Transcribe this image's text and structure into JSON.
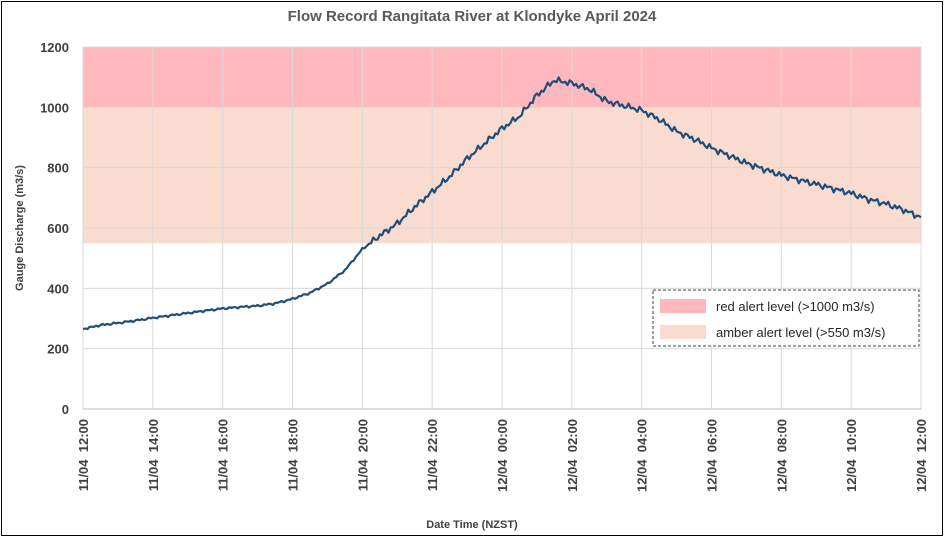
{
  "chart_data": {
    "type": "line",
    "title": "Flow Record Rangitata River at Klondyke April 2024",
    "xlabel": "Date Time (NZST)",
    "ylabel": "Gauge Discharge (m3/s)",
    "ylim": [
      0,
      1200
    ],
    "yticks": [
      0,
      200,
      400,
      600,
      800,
      1000,
      1200
    ],
    "xlim": [
      "2024-04-11 12:00",
      "2024-04-12 12:00"
    ],
    "xticks": [
      {
        "value": "2024-04-11 12:00",
        "label": "11/04  12:00"
      },
      {
        "value": "2024-04-11 14:00",
        "label": "11/04  14:00"
      },
      {
        "value": "2024-04-11 16:00",
        "label": "11/04  16:00"
      },
      {
        "value": "2024-04-11 18:00",
        "label": "11/04  18:00"
      },
      {
        "value": "2024-04-11 20:00",
        "label": "11/04  20:00"
      },
      {
        "value": "2024-04-11 22:00",
        "label": "11/04  22:00"
      },
      {
        "value": "2024-04-12 00:00",
        "label": "12/04  00:00"
      },
      {
        "value": "2024-04-12 02:00",
        "label": "12/04  02:00"
      },
      {
        "value": "2024-04-12 04:00",
        "label": "12/04  04:00"
      },
      {
        "value": "2024-04-12 06:00",
        "label": "12/04  06:00"
      },
      {
        "value": "2024-04-12 08:00",
        "label": "12/04  08:00"
      },
      {
        "value": "2024-04-12 10:00",
        "label": "12/04  10:00"
      },
      {
        "value": "2024-04-12 12:00",
        "label": "12/04  12:00"
      }
    ],
    "grid": true,
    "legend_position": "right",
    "bands": [
      {
        "name": "red alert level (>1000 m3/s)",
        "from": 1000,
        "to": 1200,
        "color": "#ffb9be"
      },
      {
        "name": "amber alert level (>550 m3/s)",
        "from": 550,
        "to": 1000,
        "color": "#f9dccf"
      }
    ],
    "series": [
      {
        "color": "#1f4e79",
        "x": [
          "2024-04-11 12:00",
          "2024-04-11 12:30",
          "2024-04-11 13:00",
          "2024-04-11 13:30",
          "2024-04-11 14:00",
          "2024-04-11 14:30",
          "2024-04-11 15:00",
          "2024-04-11 15:30",
          "2024-04-11 16:00",
          "2024-04-11 16:30",
          "2024-04-11 17:00",
          "2024-04-11 17:30",
          "2024-04-11 18:00",
          "2024-04-11 18:30",
          "2024-04-11 19:00",
          "2024-04-11 19:30",
          "2024-04-11 20:00",
          "2024-04-11 20:30",
          "2024-04-11 21:00",
          "2024-04-11 21:30",
          "2024-04-11 22:00",
          "2024-04-11 22:30",
          "2024-04-11 23:00",
          "2024-04-11 23:30",
          "2024-04-12 00:00",
          "2024-04-12 00:30",
          "2024-04-12 01:00",
          "2024-04-12 01:30",
          "2024-04-12 02:00",
          "2024-04-12 02:30",
          "2024-04-12 03:00",
          "2024-04-12 03:30",
          "2024-04-12 04:00",
          "2024-04-12 04:30",
          "2024-04-12 05:00",
          "2024-04-12 05:30",
          "2024-04-12 06:00",
          "2024-04-12 06:30",
          "2024-04-12 07:00",
          "2024-04-12 07:30",
          "2024-04-12 08:00",
          "2024-04-12 08:30",
          "2024-04-12 09:00",
          "2024-04-12 09:30",
          "2024-04-12 10:00",
          "2024-04-12 10:30",
          "2024-04-12 11:00",
          "2024-04-12 11:30",
          "2024-04-12 12:00"
        ],
        "y": [
          265,
          278,
          285,
          293,
          302,
          310,
          318,
          326,
          333,
          338,
          342,
          350,
          365,
          385,
          415,
          460,
          530,
          575,
          615,
          670,
          720,
          770,
          830,
          880,
          930,
          970,
          1040,
          1090,
          1080,
          1060,
          1020,
          1005,
          990,
          960,
          920,
          895,
          865,
          840,
          815,
          795,
          775,
          760,
          745,
          730,
          715,
          695,
          680,
          660,
          635
        ]
      }
    ]
  }
}
